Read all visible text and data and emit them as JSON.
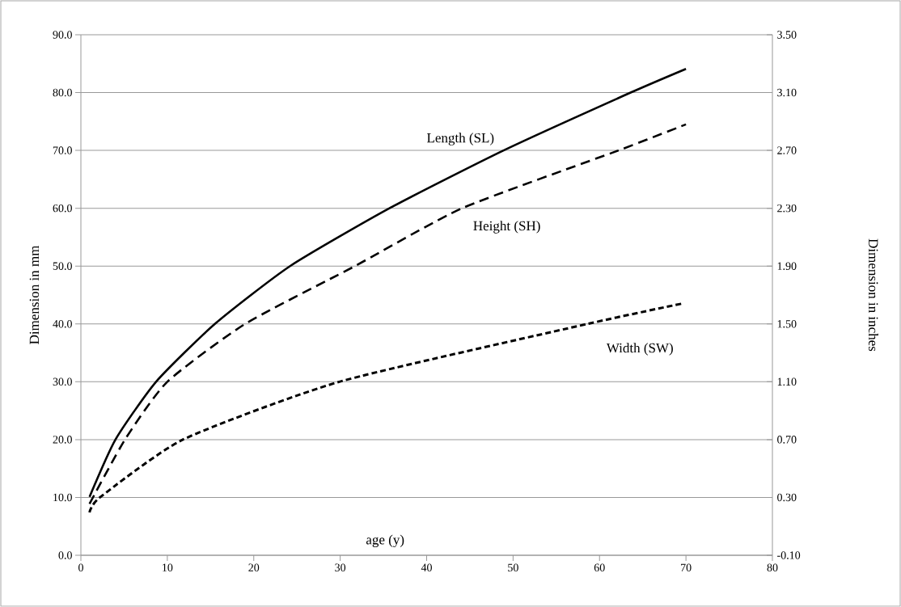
{
  "chart_data": {
    "type": "line",
    "xlabel": "age (y)",
    "ylabel": "Dimension in mm",
    "y2label": "Dimension in inches",
    "xlim": [
      0,
      80
    ],
    "xticks": [
      0,
      10,
      20,
      30,
      40,
      50,
      60,
      70,
      80
    ],
    "ylim": [
      0,
      90
    ],
    "yticks": [
      {
        "value": 0,
        "label": "0.0"
      },
      {
        "value": 10,
        "label": "10.0"
      },
      {
        "value": 20,
        "label": "20.0"
      },
      {
        "value": 30,
        "label": "30.0"
      },
      {
        "value": 40,
        "label": "40.0"
      },
      {
        "value": 50,
        "label": "50.0"
      },
      {
        "value": 60,
        "label": "60.0"
      },
      {
        "value": 70,
        "label": "70.0"
      },
      {
        "value": 80,
        "label": "80.0"
      },
      {
        "value": 90,
        "label": "90.0"
      }
    ],
    "y2lim": [
      -0.1,
      3.5
    ],
    "y2ticks": [
      {
        "value": -0.1,
        "label": "-0.10"
      },
      {
        "value": 0.3,
        "label": "0.30"
      },
      {
        "value": 0.7,
        "label": "0.70"
      },
      {
        "value": 1.1,
        "label": "1.10"
      },
      {
        "value": 1.5,
        "label": "1.50"
      },
      {
        "value": 1.9,
        "label": "1.90"
      },
      {
        "value": 2.3,
        "label": "2.30"
      },
      {
        "value": 2.7,
        "label": "2.70"
      },
      {
        "value": 3.1,
        "label": "3.10"
      },
      {
        "value": 3.5,
        "label": "3.50"
      }
    ],
    "grid": "y",
    "marker": "none",
    "series": [
      {
        "name": "Length (SL)",
        "color": "#000000",
        "line_style": "solid",
        "x": [
          1,
          4,
          8.7,
          15.5,
          24.2,
          35.7,
          48.9,
          63.6,
          70
        ],
        "values": [
          10.1,
          20,
          30,
          40,
          50,
          60,
          70,
          80,
          84.1
        ]
      },
      {
        "name": "Height (SH)",
        "color": "#000000",
        "line_style": "dashed",
        "x": [
          1,
          5.1,
          10,
          19,
          31.7,
          44.1,
          62.2,
          70
        ],
        "values": [
          8.9,
          20,
          30,
          40,
          50,
          60,
          70,
          74.5
        ]
      },
      {
        "name": "Width (SW)",
        "color": "#000000",
        "line_style": "dotted",
        "x": [
          1,
          2.2,
          11.8,
          29.9,
          58.6,
          69.5
        ],
        "values": [
          7.4,
          10,
          20,
          30,
          40,
          43.5
        ]
      }
    ]
  }
}
